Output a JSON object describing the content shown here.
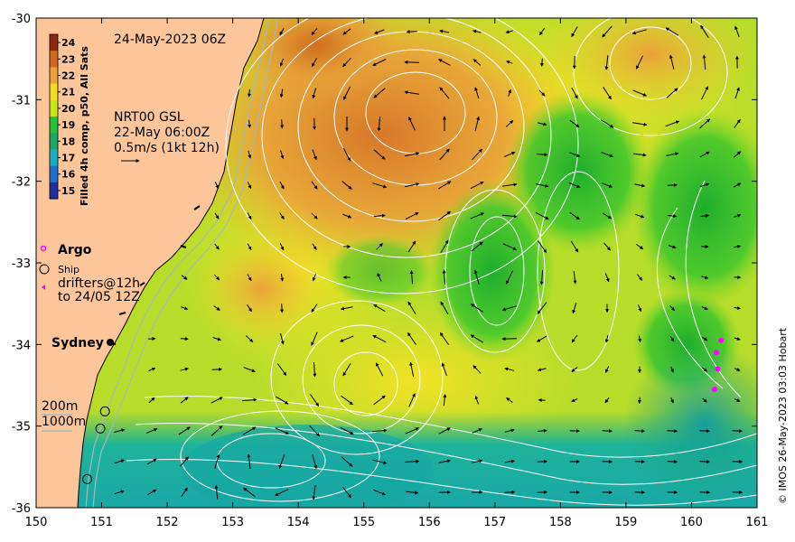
{
  "map": {
    "date_title": "24-May-2023 06Z",
    "product_label": "Filled 4h comp, p50, All Sats",
    "credit": "© IMOS 26-May-2023 03:03 Hobart",
    "x_ticks": [
      "150",
      "151",
      "152",
      "153",
      "154",
      "155",
      "156",
      "157",
      "158",
      "159",
      "160",
      "161"
    ],
    "y_ticks": [
      "-30",
      "-31",
      "-32",
      "-33",
      "-34",
      "-35",
      "-36"
    ],
    "lon_range": [
      150,
      161
    ],
    "lat_range": [
      -36,
      -30
    ],
    "colorbar": {
      "ticks": [
        "24",
        "23",
        "22",
        "21",
        "20",
        "19",
        "18",
        "17",
        "16",
        "15"
      ],
      "colors": [
        "#8b2a10",
        "#d2691e",
        "#e8a33a",
        "#f0e020",
        "#c8e61e",
        "#22c23a",
        "#1aa868",
        "#18b0c0",
        "#1e6fd0",
        "#1e2fa0"
      ]
    },
    "altimetry": {
      "line1": "NRT00 GSL",
      "line2": "22-May 06:00Z",
      "line3": "0.5m/s (1kt 12h)"
    },
    "legend": {
      "argo": "Argo",
      "ship": "Ship",
      "drifters_line1": "drifters@12h",
      "drifters_line2": "to 24/05 12Z"
    },
    "depth": {
      "line1": "200m",
      "line2": "1000m"
    },
    "city": "Sydney",
    "colors": {
      "land": "#fcc69a",
      "argo": "#ff00ff",
      "drifter": "#ff00ff"
    },
    "argo_points": [
      {
        "lon": 160.45,
        "lat": -33.95
      },
      {
        "lon": 160.38,
        "lat": -34.1
      },
      {
        "lon": 160.4,
        "lat": -34.3
      },
      {
        "lon": 160.35,
        "lat": -34.55
      }
    ],
    "ship_points": [
      {
        "lon": 151.05,
        "lat": -34.82
      },
      {
        "lon": 150.98,
        "lat": -35.03
      },
      {
        "lon": 150.78,
        "lat": -35.65
      }
    ]
  }
}
